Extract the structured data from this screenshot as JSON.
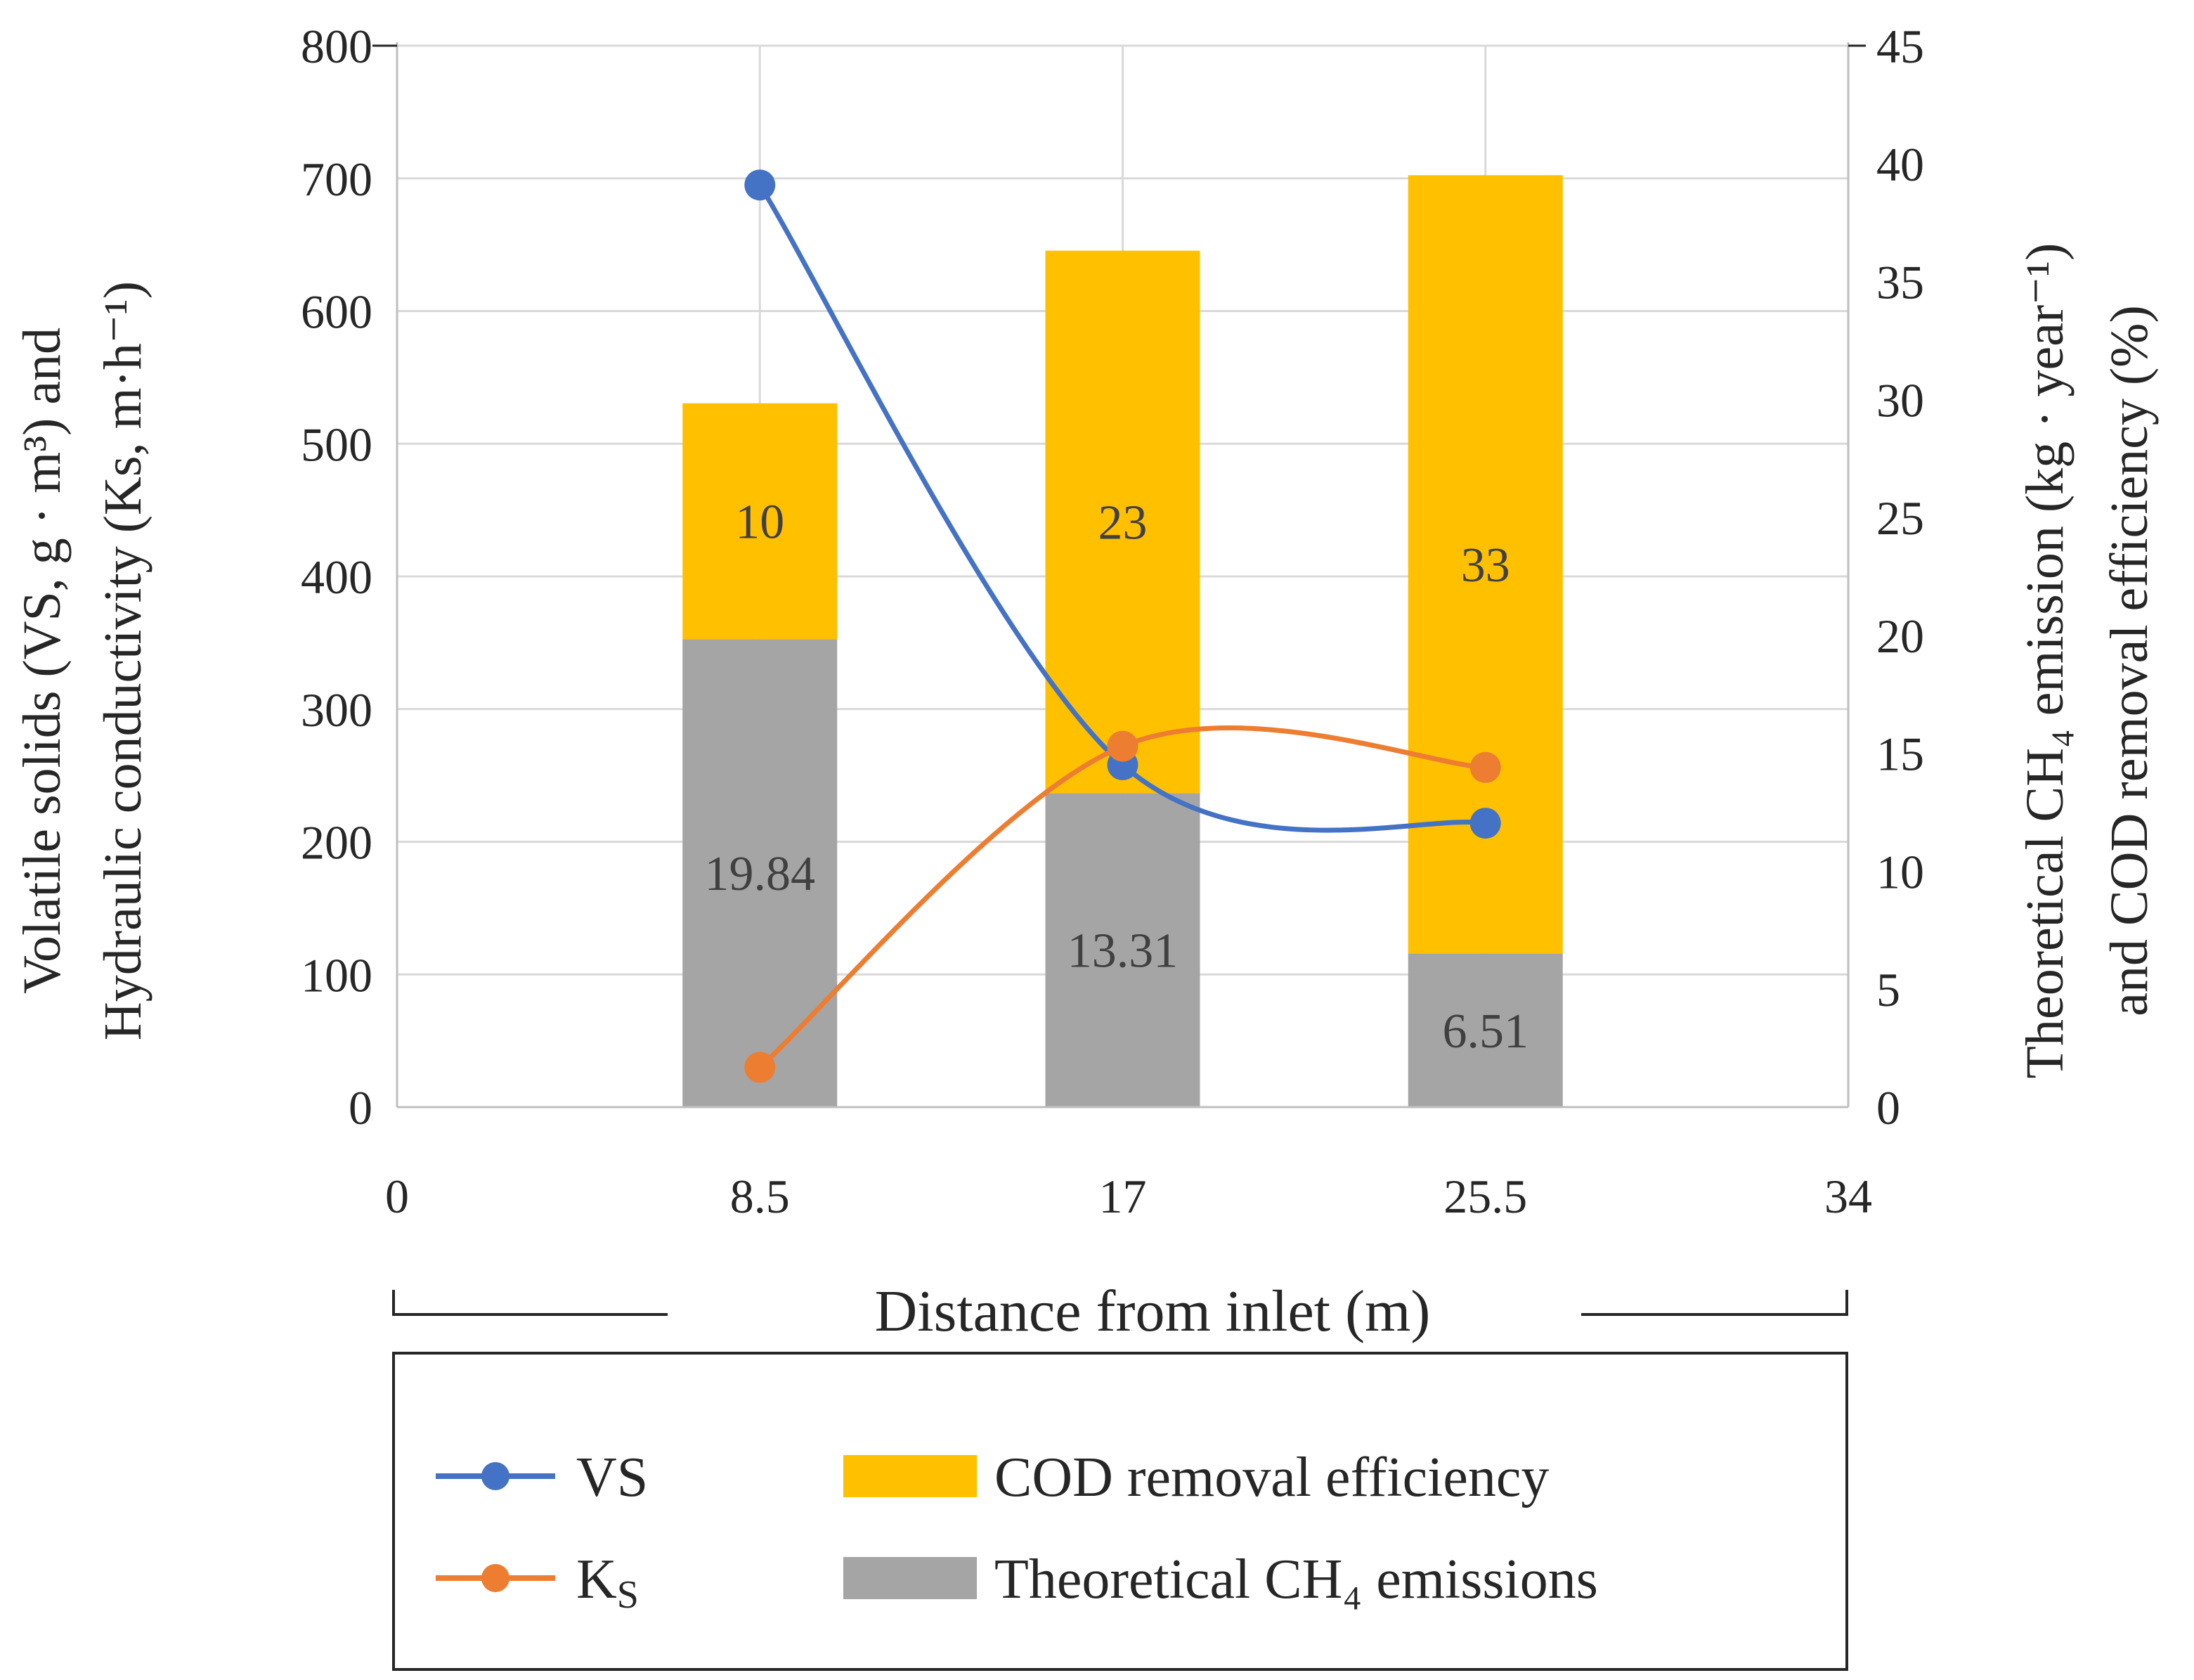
{
  "chart_data": {
    "type": "bar+line",
    "x": [
      8.5,
      17,
      25.5
    ],
    "x_ticks": [
      "0",
      "8.5",
      "17",
      "25.5",
      "34"
    ],
    "xlim": [
      0,
      34
    ],
    "xlabel": "Distance from inlet (m)",
    "left_axis": {
      "label_line1": "Volatile solids (VS, g · m³) and",
      "label_line2": "Hydraulic conductivity (Ks, m·h⁻¹)",
      "ylim": [
        0,
        800
      ],
      "ticks": [
        "0",
        "100",
        "200",
        "300",
        "400",
        "500",
        "600",
        "700",
        "800"
      ]
    },
    "right_axis": {
      "label_line1": "Theoretical CH₄ emission (kg · year⁻¹)",
      "label_line2": "and COD removal efficiency (%)",
      "ylim": [
        0,
        45
      ],
      "ticks": [
        "0",
        "5",
        "10",
        "15",
        "20",
        "25",
        "30",
        "35",
        "40",
        "45"
      ]
    },
    "series": [
      {
        "name": "VS",
        "type": "line",
        "axis": "left",
        "color": "#4472C4",
        "values": [
          695,
          258,
          214
        ]
      },
      {
        "name": "Ks",
        "type": "line",
        "axis": "left",
        "color": "#ED7D31",
        "values": [
          30,
          272,
          256
        ]
      },
      {
        "name": "Theoretical CH₄ emissions",
        "type": "stacked-bar",
        "axis": "right",
        "color": "#A5A5A5",
        "values": [
          19.84,
          13.31,
          6.51
        ],
        "labels": [
          "19.84",
          "13.31",
          "6.51"
        ]
      },
      {
        "name": "COD removal efficiency",
        "type": "stacked-bar",
        "axis": "right",
        "color": "#FFC000",
        "values": [
          10,
          23,
          33
        ],
        "labels": [
          "10",
          "23",
          "33"
        ]
      }
    ],
    "legend": {
      "position": "bottom",
      "vs": "VS",
      "ks_main": "K",
      "ks_sub": "S",
      "cod": "COD removal efficiency",
      "ch4": "Theoretical CH₄ emissions"
    }
  }
}
